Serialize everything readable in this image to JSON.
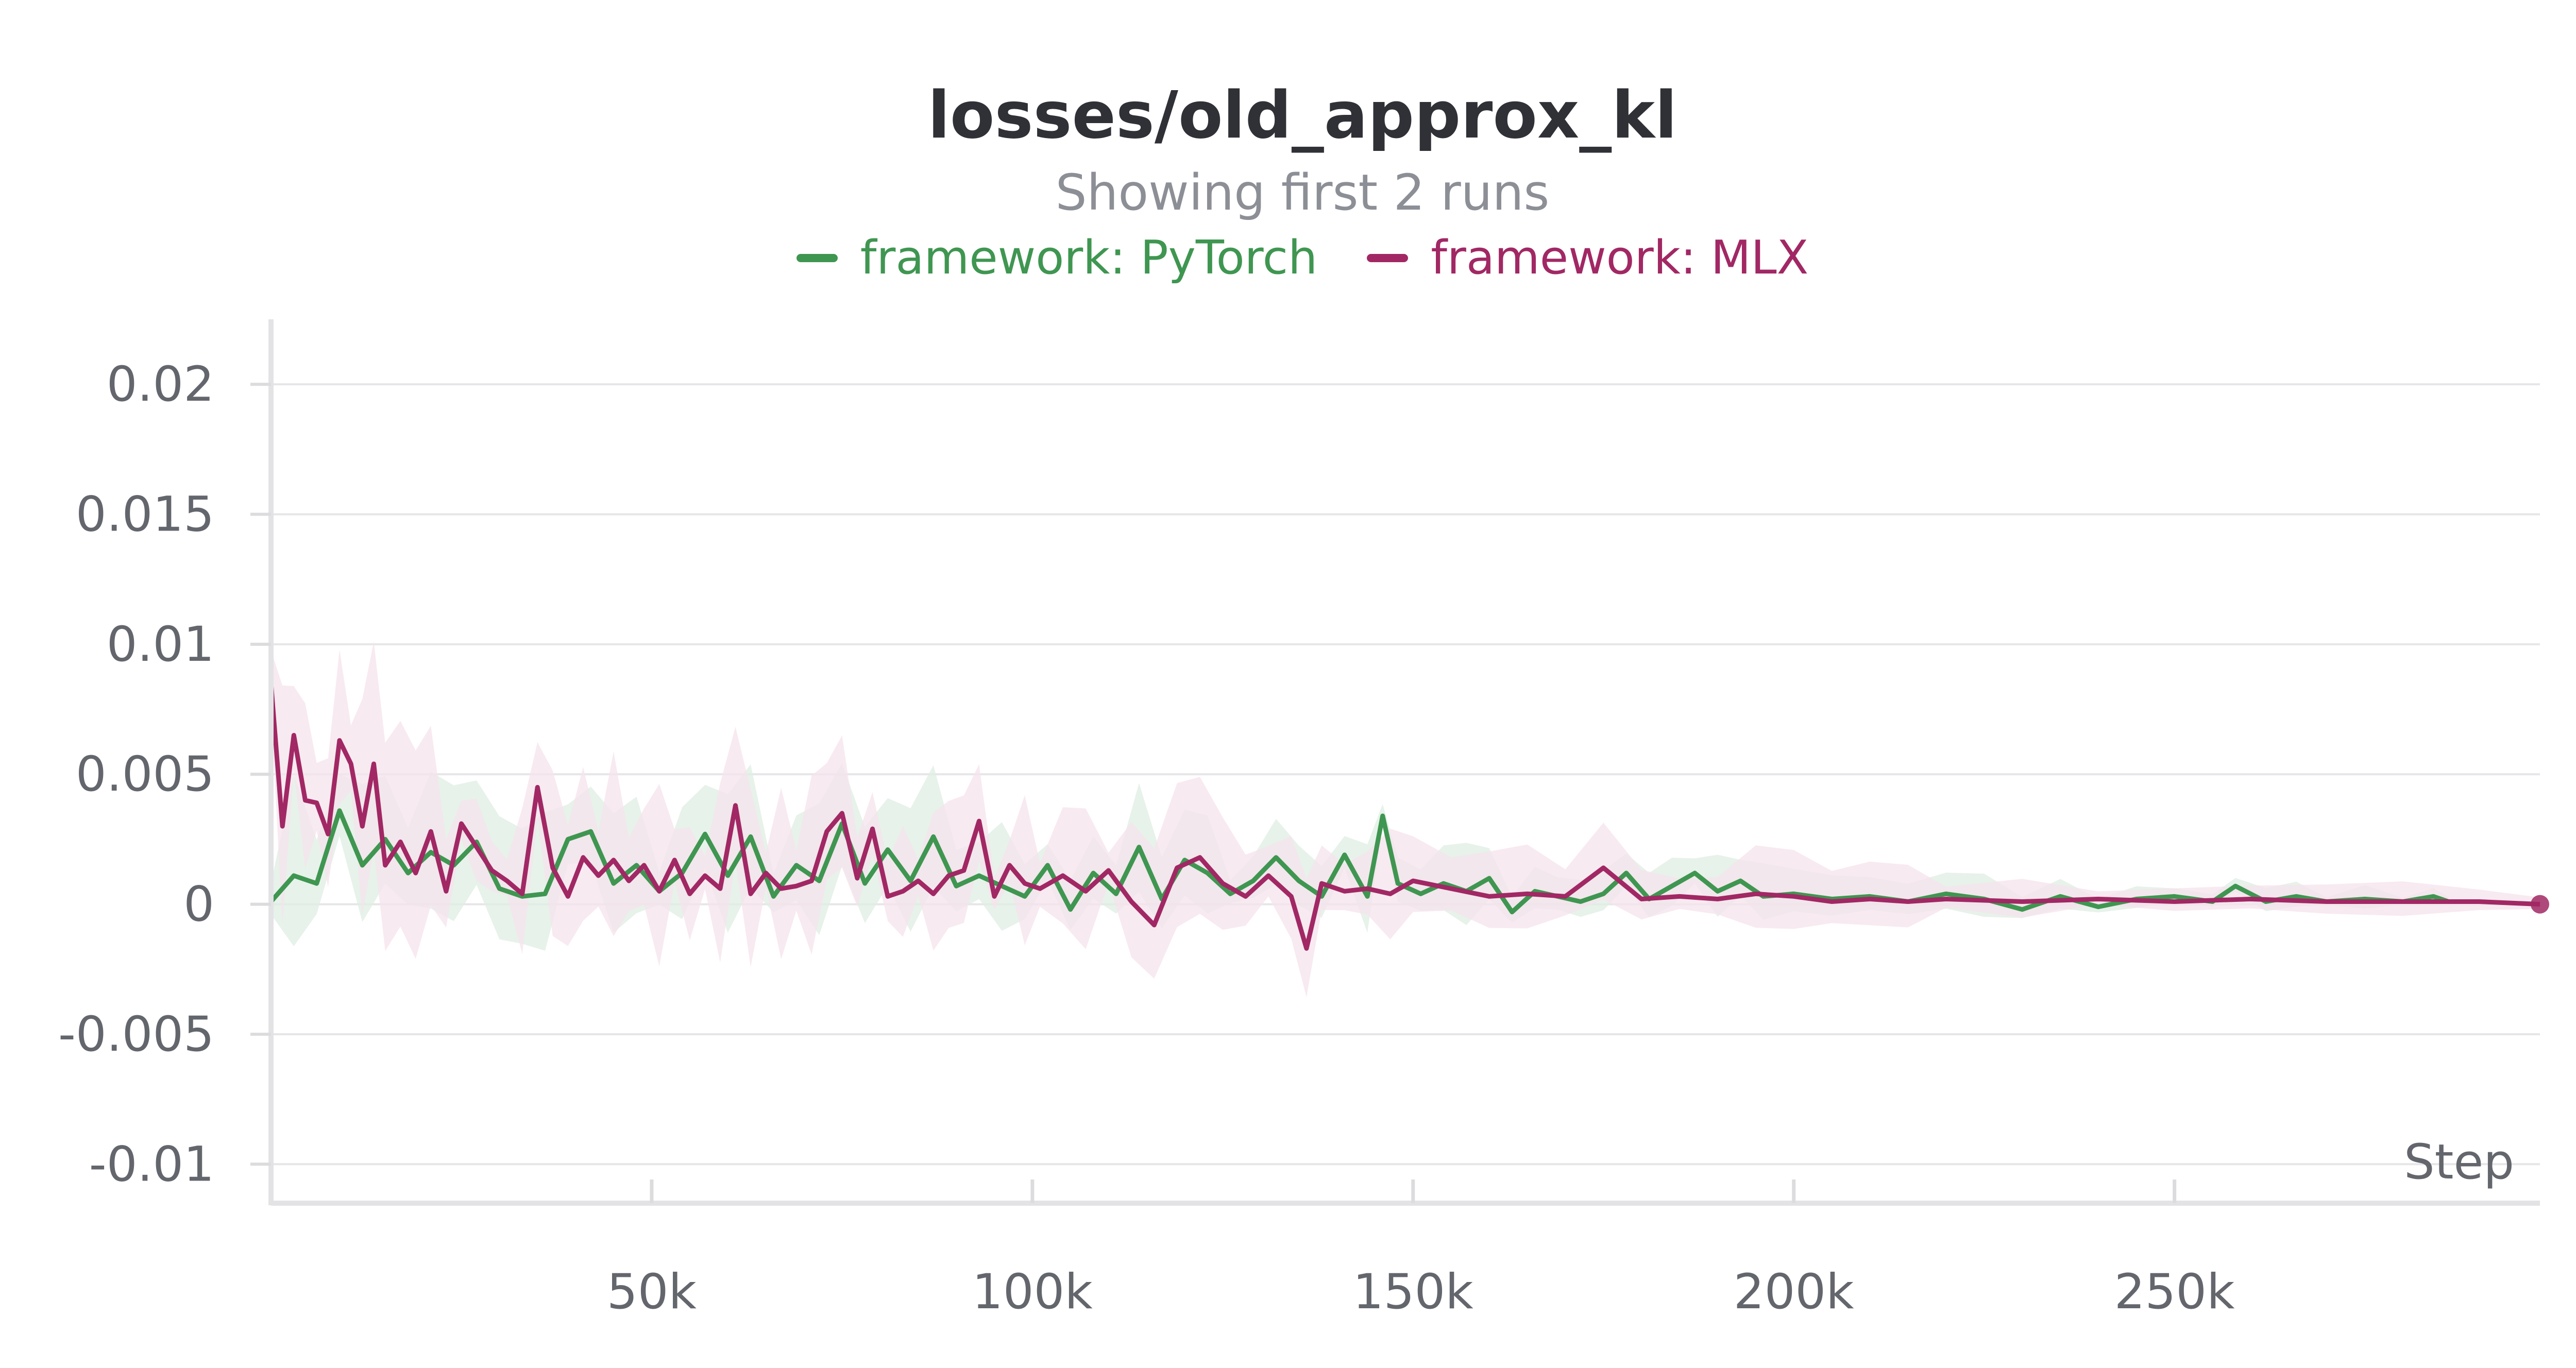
{
  "chart_data": {
    "type": "line",
    "title": "losses/old_approx_kl",
    "subtitle": "Showing first 2 runs",
    "xlabel": "Step",
    "ylabel": "",
    "xlim": [
      0,
      298000
    ],
    "ylim": [
      -0.0115,
      0.0225
    ],
    "x_ticks": [
      50000,
      100000,
      150000,
      200000,
      250000
    ],
    "x_tick_labels": [
      "50k",
      "100k",
      "150k",
      "200k",
      "250k"
    ],
    "y_ticks": [
      0.02,
      0.015,
      0.01,
      0.005,
      0,
      -0.005,
      -0.01
    ],
    "y_tick_labels": [
      "0.02",
      "0.015",
      "0.01",
      "0.005",
      "0",
      "-0.005",
      "-0.01"
    ],
    "grid": true,
    "legend_position": "top-center",
    "series": [
      {
        "name": "framework: PyTorch",
        "color": "#3f9651",
        "band_color": "#dfeee3",
        "x": [
          0,
          3000,
          6000,
          9000,
          12000,
          15000,
          18000,
          21000,
          24000,
          27000,
          30000,
          33000,
          36000,
          39000,
          42000,
          45000,
          48000,
          51000,
          54000,
          57000,
          60000,
          63000,
          66000,
          69000,
          72000,
          75000,
          78000,
          81000,
          84000,
          87000,
          90000,
          93000,
          96000,
          99000,
          102000,
          105000,
          108000,
          111000,
          114000,
          117000,
          120000,
          123000,
          126000,
          129000,
          132000,
          135000,
          138000,
          141000,
          144000,
          146000,
          148000,
          151000,
          154000,
          157000,
          160000,
          163000,
          166000,
          169000,
          172000,
          175000,
          178000,
          181000,
          184000,
          187000,
          190000,
          193000,
          196000,
          200000,
          205000,
          210000,
          215000,
          220000,
          225000,
          230000,
          235000,
          240000,
          245000,
          250000,
          255000,
          258000,
          262000,
          266000,
          270000,
          275000,
          280000,
          284000,
          286000
        ],
        "y": [
          0.0001,
          0.0011,
          0.0008,
          0.0036,
          0.0015,
          0.0025,
          0.0012,
          0.002,
          0.0015,
          0.0024,
          0.0006,
          0.0003,
          0.0004,
          0.0025,
          0.0028,
          0.0008,
          0.0015,
          0.0005,
          0.0012,
          0.0027,
          0.0011,
          0.0026,
          0.0003,
          0.0015,
          0.0009,
          0.0031,
          0.0008,
          0.0021,
          0.0009,
          0.0026,
          0.0007,
          0.0011,
          0.0007,
          0.0003,
          0.0015,
          -0.0002,
          0.0012,
          0.0004,
          0.0022,
          0.0002,
          0.0017,
          0.0012,
          0.0004,
          0.0009,
          0.0018,
          0.0009,
          0.0003,
          0.0019,
          0.0003,
          0.0034,
          0.0008,
          0.0004,
          0.0008,
          0.0005,
          0.001,
          -0.0003,
          0.0005,
          0.0003,
          0.0001,
          0.0004,
          0.0012,
          0.0002,
          0.0007,
          0.0012,
          0.0005,
          0.0009,
          0.0003,
          0.0004,
          0.0002,
          0.0003,
          0.0001,
          0.0004,
          0.0002,
          -0.0002,
          0.0003,
          -0.0001,
          0.0002,
          0.0003,
          0.0001,
          0.0007,
          0.0001,
          0.0003,
          0.0001,
          0.0002,
          0.0001,
          0.0003,
          0.0001
        ]
      },
      {
        "name": "framework: MLX",
        "color": "#a12864",
        "band_color": "#f6e3ec",
        "x": [
          0,
          1500,
          3000,
          4500,
          6000,
          7500,
          9000,
          10500,
          12000,
          13500,
          15000,
          17000,
          19000,
          21000,
          23000,
          25000,
          27000,
          29000,
          31000,
          33000,
          35000,
          37000,
          39000,
          41000,
          43000,
          45000,
          47000,
          49000,
          51000,
          53000,
          55000,
          57000,
          59000,
          61000,
          63000,
          65000,
          67000,
          69000,
          71000,
          73000,
          75000,
          77000,
          79000,
          81000,
          83000,
          85000,
          87000,
          89000,
          91000,
          93000,
          95000,
          97000,
          99000,
          101000,
          104000,
          107000,
          110000,
          113000,
          116000,
          119000,
          122000,
          125000,
          128000,
          131000,
          134000,
          136000,
          138000,
          141000,
          144000,
          147000,
          150000,
          155000,
          160000,
          165000,
          170000,
          175000,
          180000,
          185000,
          190000,
          195000,
          200000,
          205000,
          210000,
          215000,
          220000,
          230000,
          240000,
          250000,
          260000,
          270000,
          280000,
          290000,
          298000
        ],
        "y": [
          0.0085,
          0.003,
          0.0065,
          0.004,
          0.0039,
          0.0027,
          0.0063,
          0.0054,
          0.003,
          0.0054,
          0.0015,
          0.0024,
          0.0012,
          0.0028,
          0.0005,
          0.0031,
          0.0022,
          0.0013,
          0.0009,
          0.0004,
          0.0045,
          0.0014,
          0.0003,
          0.0018,
          0.0011,
          0.0017,
          0.0009,
          0.0015,
          0.0005,
          0.0017,
          0.0004,
          0.0011,
          0.0006,
          0.0038,
          0.0004,
          0.0012,
          0.0006,
          0.0007,
          0.0009,
          0.0028,
          0.0035,
          0.001,
          0.0029,
          0.0003,
          0.0005,
          0.0009,
          0.0004,
          0.0011,
          0.0013,
          0.0032,
          0.0003,
          0.0015,
          0.0008,
          0.0006,
          0.0011,
          0.0005,
          0.0013,
          0.0001,
          -0.0008,
          0.0014,
          0.0018,
          0.0008,
          0.0003,
          0.0011,
          0.0003,
          -0.0017,
          0.0008,
          0.0005,
          0.0006,
          0.0004,
          0.0009,
          0.0006,
          0.0003,
          0.0004,
          0.0003,
          0.0014,
          0.0002,
          0.0003,
          0.0002,
          0.0004,
          0.0003,
          0.0001,
          0.0002,
          0.0001,
          0.0002,
          0.0001,
          0.0002,
          0.0001,
          0.0002,
          0.0001,
          0.0001,
          0.0001,
          0
        ]
      }
    ]
  }
}
